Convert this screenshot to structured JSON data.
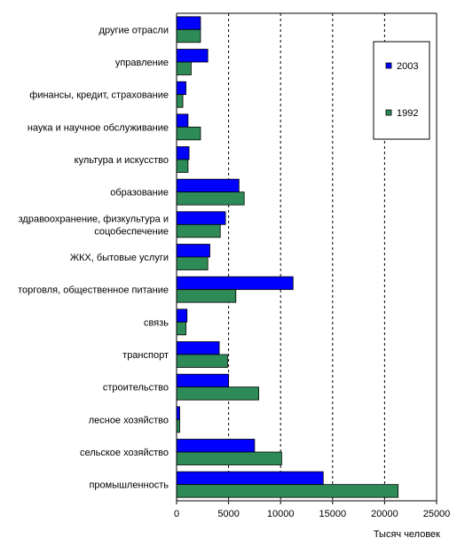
{
  "chart_data": {
    "type": "bar",
    "orientation": "horizontal",
    "categories": [
      "другие отрасли",
      "управление",
      "финансы, кредит, страхование",
      "наука и научное обслуживание",
      "культура и искусство",
      "образование",
      "здравоохранение, физкультура и соцобеспечение",
      "ЖКХ, бытовые услуги",
      "торговля, общественное питание",
      "связь",
      "транспорт",
      "строительство",
      "лесное хозяйство",
      "сельское хозяйство",
      "промышленность"
    ],
    "category_lines": [
      [
        "другие отрасли"
      ],
      [
        "управление"
      ],
      [
        "финансы, кредит, страхование"
      ],
      [
        "наука и научное обслуживание"
      ],
      [
        "культура и искусство"
      ],
      [
        "образование"
      ],
      [
        "здравоохранение, физкультура и",
        "соцобеспечение"
      ],
      [
        "ЖКХ, бытовые услуги"
      ],
      [
        "торговля, общественное питание"
      ],
      [
        "связь"
      ],
      [
        "транспорт"
      ],
      [
        "строительство"
      ],
      [
        "лесное хозяйство"
      ],
      [
        "сельское хозяйство"
      ],
      [
        "промышленность"
      ]
    ],
    "series": [
      {
        "name": "2003",
        "color": "#0000ff",
        "values": [
          2300,
          3000,
          900,
          1100,
          1200,
          6000,
          4700,
          3200,
          11200,
          1000,
          4100,
          5000,
          300,
          7500,
          14100
        ]
      },
      {
        "name": "1992",
        "color": "#2e8b57",
        "values": [
          2300,
          1400,
          600,
          2300,
          1100,
          6500,
          4200,
          3000,
          5700,
          900,
          4900,
          7900,
          300,
          10100,
          21300
        ]
      }
    ],
    "xlabel": "Тысяч человек",
    "xlim": [
      0,
      25000
    ],
    "xticks": [
      "0",
      "5000",
      "10000",
      "15000",
      "20000",
      "25000"
    ],
    "grid": "vertical dashed",
    "legend_position": "top-right"
  }
}
